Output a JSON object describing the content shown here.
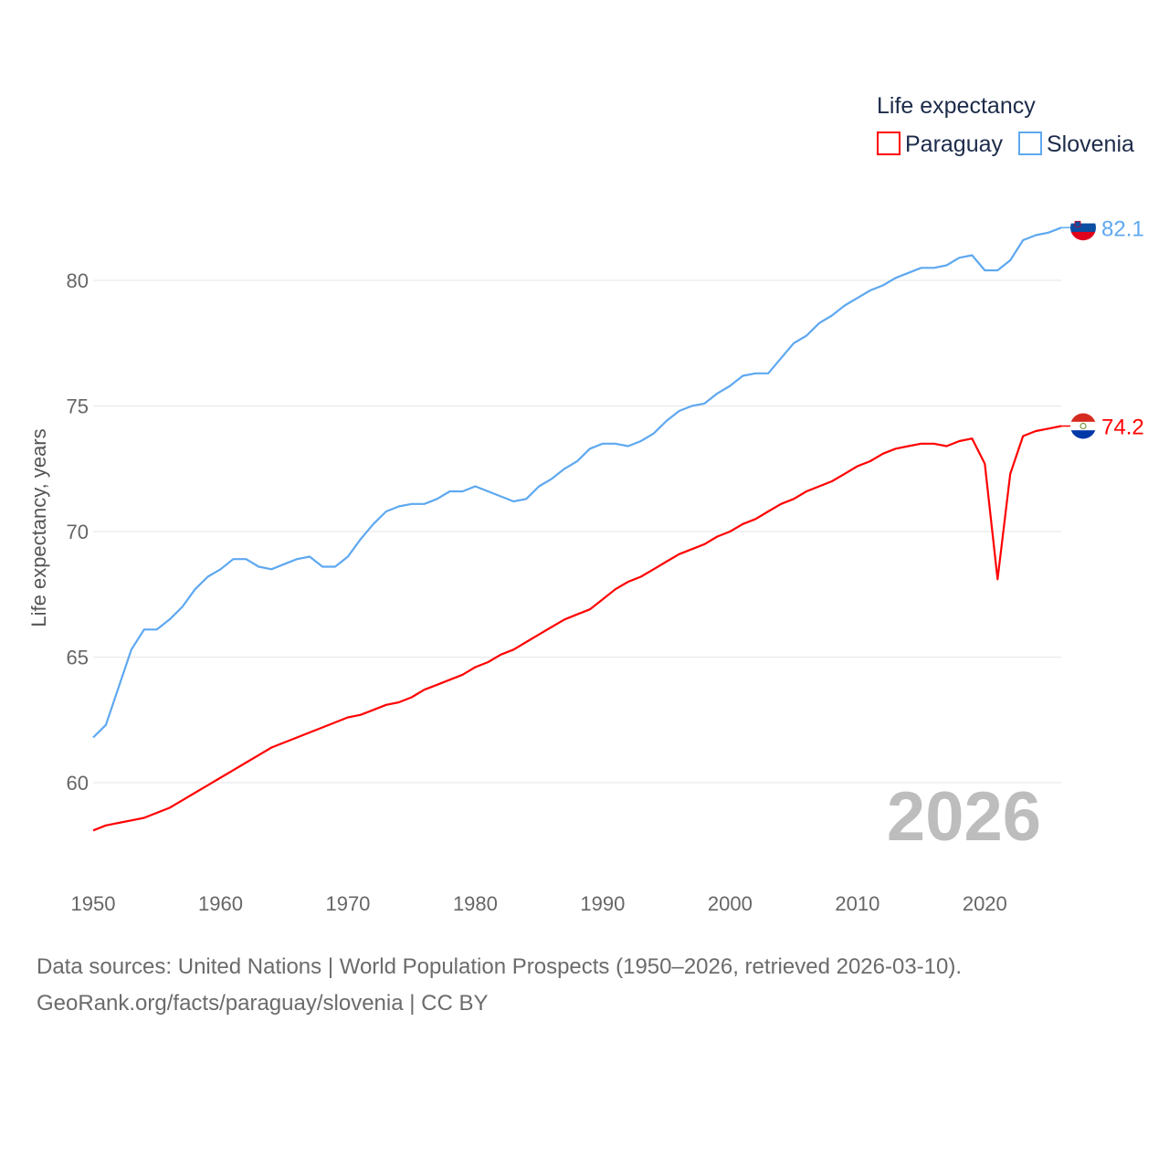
{
  "chart_data": {
    "type": "line",
    "title": "",
    "legend_title": "Life expectancy",
    "legend_placement": "top-right",
    "ylabel": "Life expectancy, years",
    "xlabel": "",
    "xlim": [
      1950,
      2026
    ],
    "ylim": [
      57,
      83
    ],
    "x_ticks": [
      1950,
      1960,
      1970,
      1980,
      1990,
      2000,
      2010,
      2020
    ],
    "y_ticks": [
      60,
      65,
      70,
      75,
      80
    ],
    "grid": true,
    "year_overlay": "2026",
    "x": [
      1950,
      1951,
      1952,
      1953,
      1954,
      1955,
      1956,
      1957,
      1958,
      1959,
      1960,
      1961,
      1962,
      1963,
      1964,
      1965,
      1966,
      1967,
      1968,
      1969,
      1970,
      1971,
      1972,
      1973,
      1974,
      1975,
      1976,
      1977,
      1978,
      1979,
      1980,
      1981,
      1982,
      1983,
      1984,
      1985,
      1986,
      1987,
      1988,
      1989,
      1990,
      1991,
      1992,
      1993,
      1994,
      1995,
      1996,
      1997,
      1998,
      1999,
      2000,
      2001,
      2002,
      2003,
      2004,
      2005,
      2006,
      2007,
      2008,
      2009,
      2010,
      2011,
      2012,
      2013,
      2014,
      2015,
      2016,
      2017,
      2018,
      2019,
      2020,
      2021,
      2022,
      2023,
      2024,
      2025,
      2026
    ],
    "series": [
      {
        "name": "Paraguay",
        "color": "#ff0000",
        "end_label": "74.2",
        "values": [
          58.1,
          58.3,
          58.4,
          58.5,
          58.6,
          58.8,
          59.0,
          59.3,
          59.6,
          59.9,
          60.2,
          60.5,
          60.8,
          61.1,
          61.4,
          61.6,
          61.8,
          62.0,
          62.2,
          62.4,
          62.6,
          62.7,
          62.9,
          63.1,
          63.2,
          63.4,
          63.7,
          63.9,
          64.1,
          64.3,
          64.6,
          64.8,
          65.1,
          65.3,
          65.6,
          65.9,
          66.2,
          66.5,
          66.7,
          66.9,
          67.3,
          67.7,
          68.0,
          68.2,
          68.5,
          68.8,
          69.1,
          69.3,
          69.5,
          69.8,
          70.0,
          70.3,
          70.5,
          70.8,
          71.1,
          71.3,
          71.6,
          71.8,
          72.0,
          72.3,
          72.6,
          72.8,
          73.1,
          73.3,
          73.4,
          73.5,
          73.5,
          73.4,
          73.6,
          73.7,
          72.7,
          68.1,
          72.3,
          73.8,
          74.0,
          74.1,
          74.2
        ]
      },
      {
        "name": "Slovenia",
        "color": "#5ea8f0",
        "end_label": "82.1",
        "values": [
          61.8,
          62.3,
          63.8,
          65.3,
          66.1,
          66.1,
          66.5,
          67.0,
          67.7,
          68.2,
          68.5,
          68.9,
          68.9,
          68.6,
          68.5,
          68.7,
          68.9,
          69.0,
          68.6,
          68.6,
          69.0,
          69.7,
          70.3,
          70.8,
          71.0,
          71.1,
          71.1,
          71.3,
          71.6,
          71.6,
          71.8,
          71.6,
          71.4,
          71.2,
          71.3,
          71.8,
          72.1,
          72.5,
          72.8,
          73.3,
          73.5,
          73.5,
          73.4,
          73.6,
          73.9,
          74.4,
          74.8,
          75.0,
          75.1,
          75.5,
          75.8,
          76.2,
          76.3,
          76.3,
          76.9,
          77.5,
          77.8,
          78.3,
          78.6,
          79.0,
          79.3,
          79.6,
          79.8,
          80.1,
          80.3,
          80.5,
          80.5,
          80.6,
          80.9,
          81.0,
          80.4,
          80.4,
          80.8,
          81.6,
          81.8,
          81.9,
          82.1
        ]
      }
    ]
  },
  "footer": {
    "line1": "Data sources: United Nations | World Population Prospects (1950–2026, retrieved 2026-03-10).",
    "line2": "GeoRank.org/facts/paraguay/slovenia | CC BY"
  }
}
